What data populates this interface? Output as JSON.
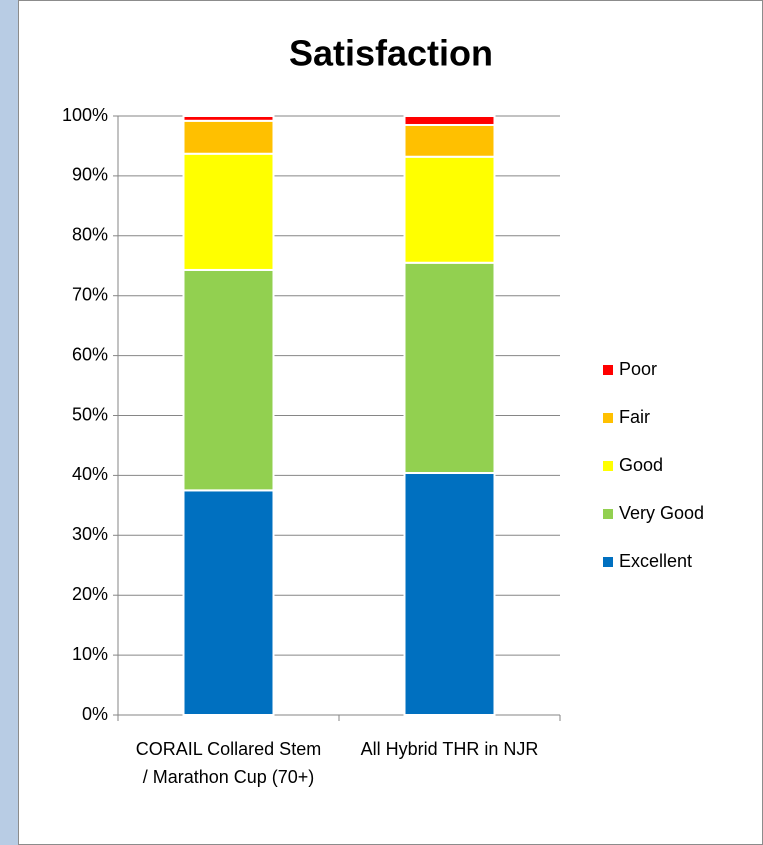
{
  "chart_data": {
    "type": "stacked_bar",
    "title": "Satisfaction",
    "categories": [
      "CORAIL Collared Stem / Marathon Cup (70+)",
      "All Hybrid THR in NJR"
    ],
    "series": [
      {
        "name": "Excellent",
        "color": "#0070c0",
        "values": [
          37.5,
          40.4
        ]
      },
      {
        "name": "Very Good",
        "color": "#92d050",
        "values": [
          36.8,
          35.1
        ]
      },
      {
        "name": "Good",
        "color": "#ffff00",
        "values": [
          19.4,
          17.7
        ]
      },
      {
        "name": "Fair",
        "color": "#ffc000",
        "values": [
          5.5,
          5.3
        ]
      },
      {
        "name": "Poor",
        "color": "#ff0000",
        "values": [
          0.8,
          1.5
        ]
      }
    ],
    "ylim": [
      0,
      100
    ],
    "yticks": [
      {
        "value": 0,
        "label": "0%"
      },
      {
        "value": 10,
        "label": "10%"
      },
      {
        "value": 20,
        "label": "20%"
      },
      {
        "value": 30,
        "label": "30%"
      },
      {
        "value": 40,
        "label": "40%"
      },
      {
        "value": 50,
        "label": "50%"
      },
      {
        "value": 60,
        "label": "60%"
      },
      {
        "value": 70,
        "label": "70%"
      },
      {
        "value": 80,
        "label": "80%"
      },
      {
        "value": 90,
        "label": "90%"
      },
      {
        "value": 100,
        "label": "100%"
      }
    ],
    "grid": true,
    "legend": "right"
  }
}
